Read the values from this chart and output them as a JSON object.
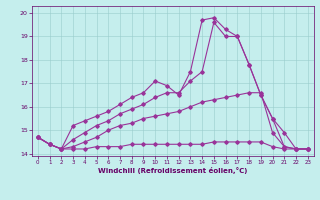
{
  "xlabel": "Windchill (Refroidissement éolien,°C)",
  "bg_color": "#c5eeed",
  "line_color": "#993399",
  "grid_color": "#99cccc",
  "x_values": [
    0,
    1,
    2,
    3,
    4,
    5,
    6,
    7,
    8,
    9,
    10,
    11,
    12,
    13,
    14,
    15,
    16,
    17,
    18,
    19,
    20,
    21,
    22,
    23
  ],
  "lines": [
    [
      14.7,
      14.4,
      14.2,
      14.2,
      14.2,
      14.3,
      14.3,
      14.3,
      14.4,
      14.4,
      14.4,
      14.4,
      14.4,
      14.4,
      14.4,
      14.5,
      14.5,
      14.5,
      14.5,
      14.5,
      14.3,
      14.2,
      14.2,
      14.2
    ],
    [
      14.7,
      14.4,
      14.2,
      14.3,
      14.5,
      14.7,
      15.0,
      15.2,
      15.3,
      15.5,
      15.6,
      15.7,
      15.8,
      16.0,
      16.2,
      16.3,
      16.4,
      16.5,
      16.6,
      16.6,
      14.9,
      14.3,
      14.2,
      14.2
    ],
    [
      14.7,
      14.4,
      14.2,
      14.6,
      14.9,
      15.2,
      15.4,
      15.7,
      15.9,
      16.1,
      16.4,
      16.6,
      16.6,
      17.1,
      17.5,
      19.6,
      19.0,
      19.0,
      17.8,
      16.5,
      15.5,
      14.3,
      14.2,
      14.2
    ],
    [
      14.7,
      14.4,
      14.2,
      15.2,
      15.4,
      15.6,
      15.8,
      16.1,
      16.4,
      16.6,
      17.1,
      16.9,
      16.5,
      17.5,
      19.7,
      19.8,
      19.3,
      19.0,
      17.8,
      16.5,
      15.5,
      14.9,
      14.2,
      14.2
    ]
  ],
  "ylim": [
    13.9,
    20.3
  ],
  "yticks": [
    14,
    15,
    16,
    17,
    18,
    19,
    20
  ],
  "xticks": [
    0,
    1,
    2,
    3,
    4,
    5,
    6,
    7,
    8,
    9,
    10,
    11,
    12,
    13,
    14,
    15,
    16,
    17,
    18,
    19,
    20,
    21,
    22,
    23
  ],
  "tick_color": "#660066",
  "xlabel_color": "#660066",
  "marker": "D",
  "markersize": 1.8,
  "linewidth": 0.8
}
